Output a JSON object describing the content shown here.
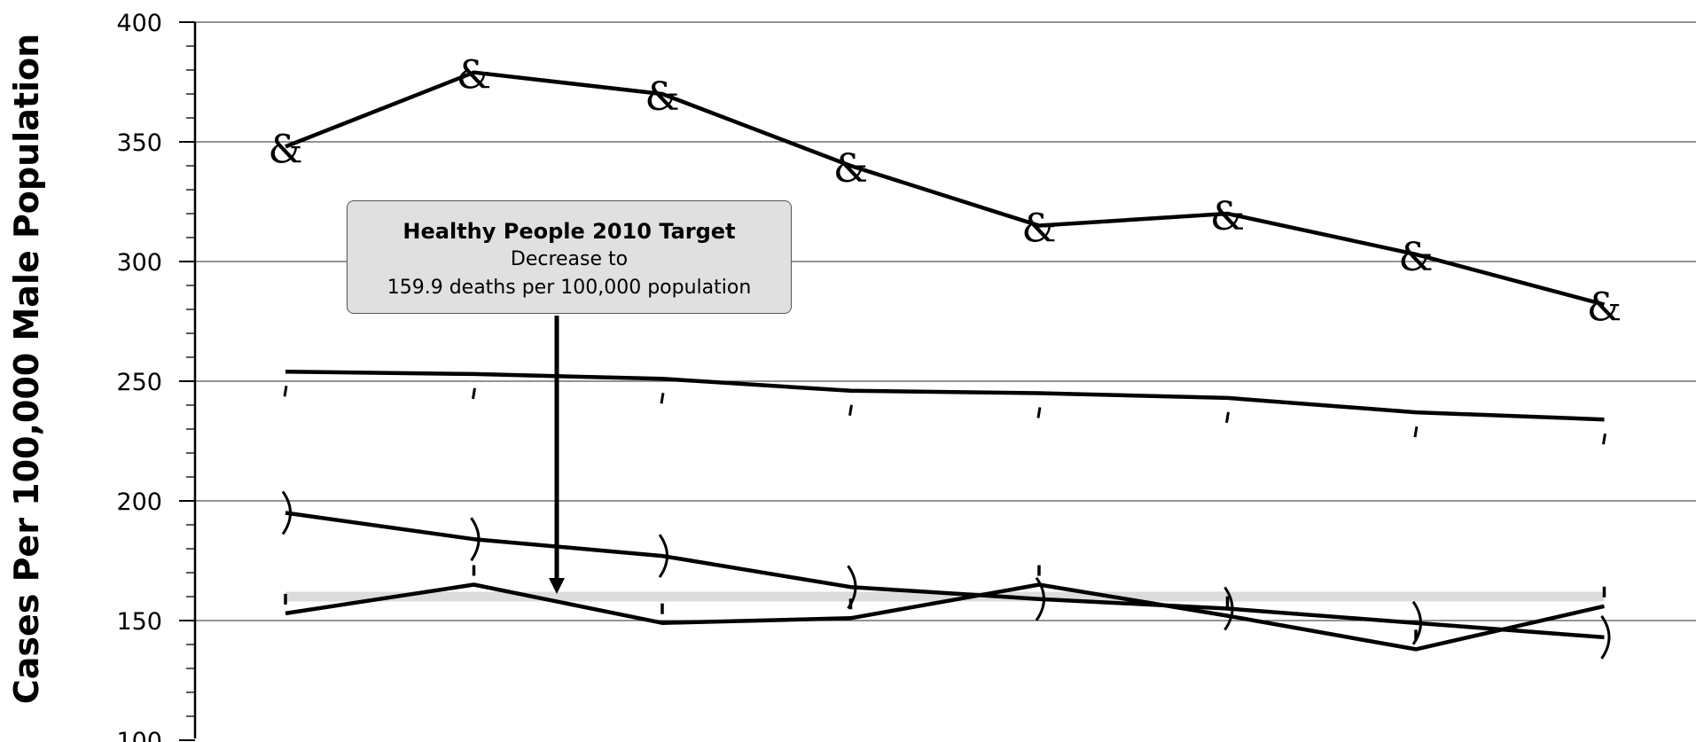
{
  "chart_data": {
    "type": "line",
    "title": "",
    "xlabel": "",
    "ylabel": "Cases Per 100,000 Male Population",
    "ylim": [
      100,
      400
    ],
    "yticks": [
      100,
      150,
      200,
      250,
      300,
      350,
      400
    ],
    "y_minor_step": 10,
    "grid": true,
    "x": [
      1,
      2,
      3,
      4,
      5,
      6,
      7,
      8
    ],
    "series": [
      {
        "marker": "&",
        "values": [
          348,
          379,
          370,
          340,
          315,
          320,
          303,
          282
        ]
      },
      {
        "marker": "'",
        "values": [
          254,
          253,
          251,
          246,
          245,
          243,
          237,
          234
        ]
      },
      {
        "marker": ")",
        "values": [
          195,
          184,
          177,
          164,
          159,
          155,
          149,
          143
        ]
      },
      {
        "marker": "|",
        "values": [
          153,
          165,
          149,
          151,
          165,
          152,
          138,
          156
        ]
      }
    ],
    "target_line": {
      "value": 160
    },
    "annotation": {
      "title": "Healthy People 2010 Target",
      "line1": "Decrease to",
      "line2": "159.9 deaths per 100,000 population"
    }
  }
}
